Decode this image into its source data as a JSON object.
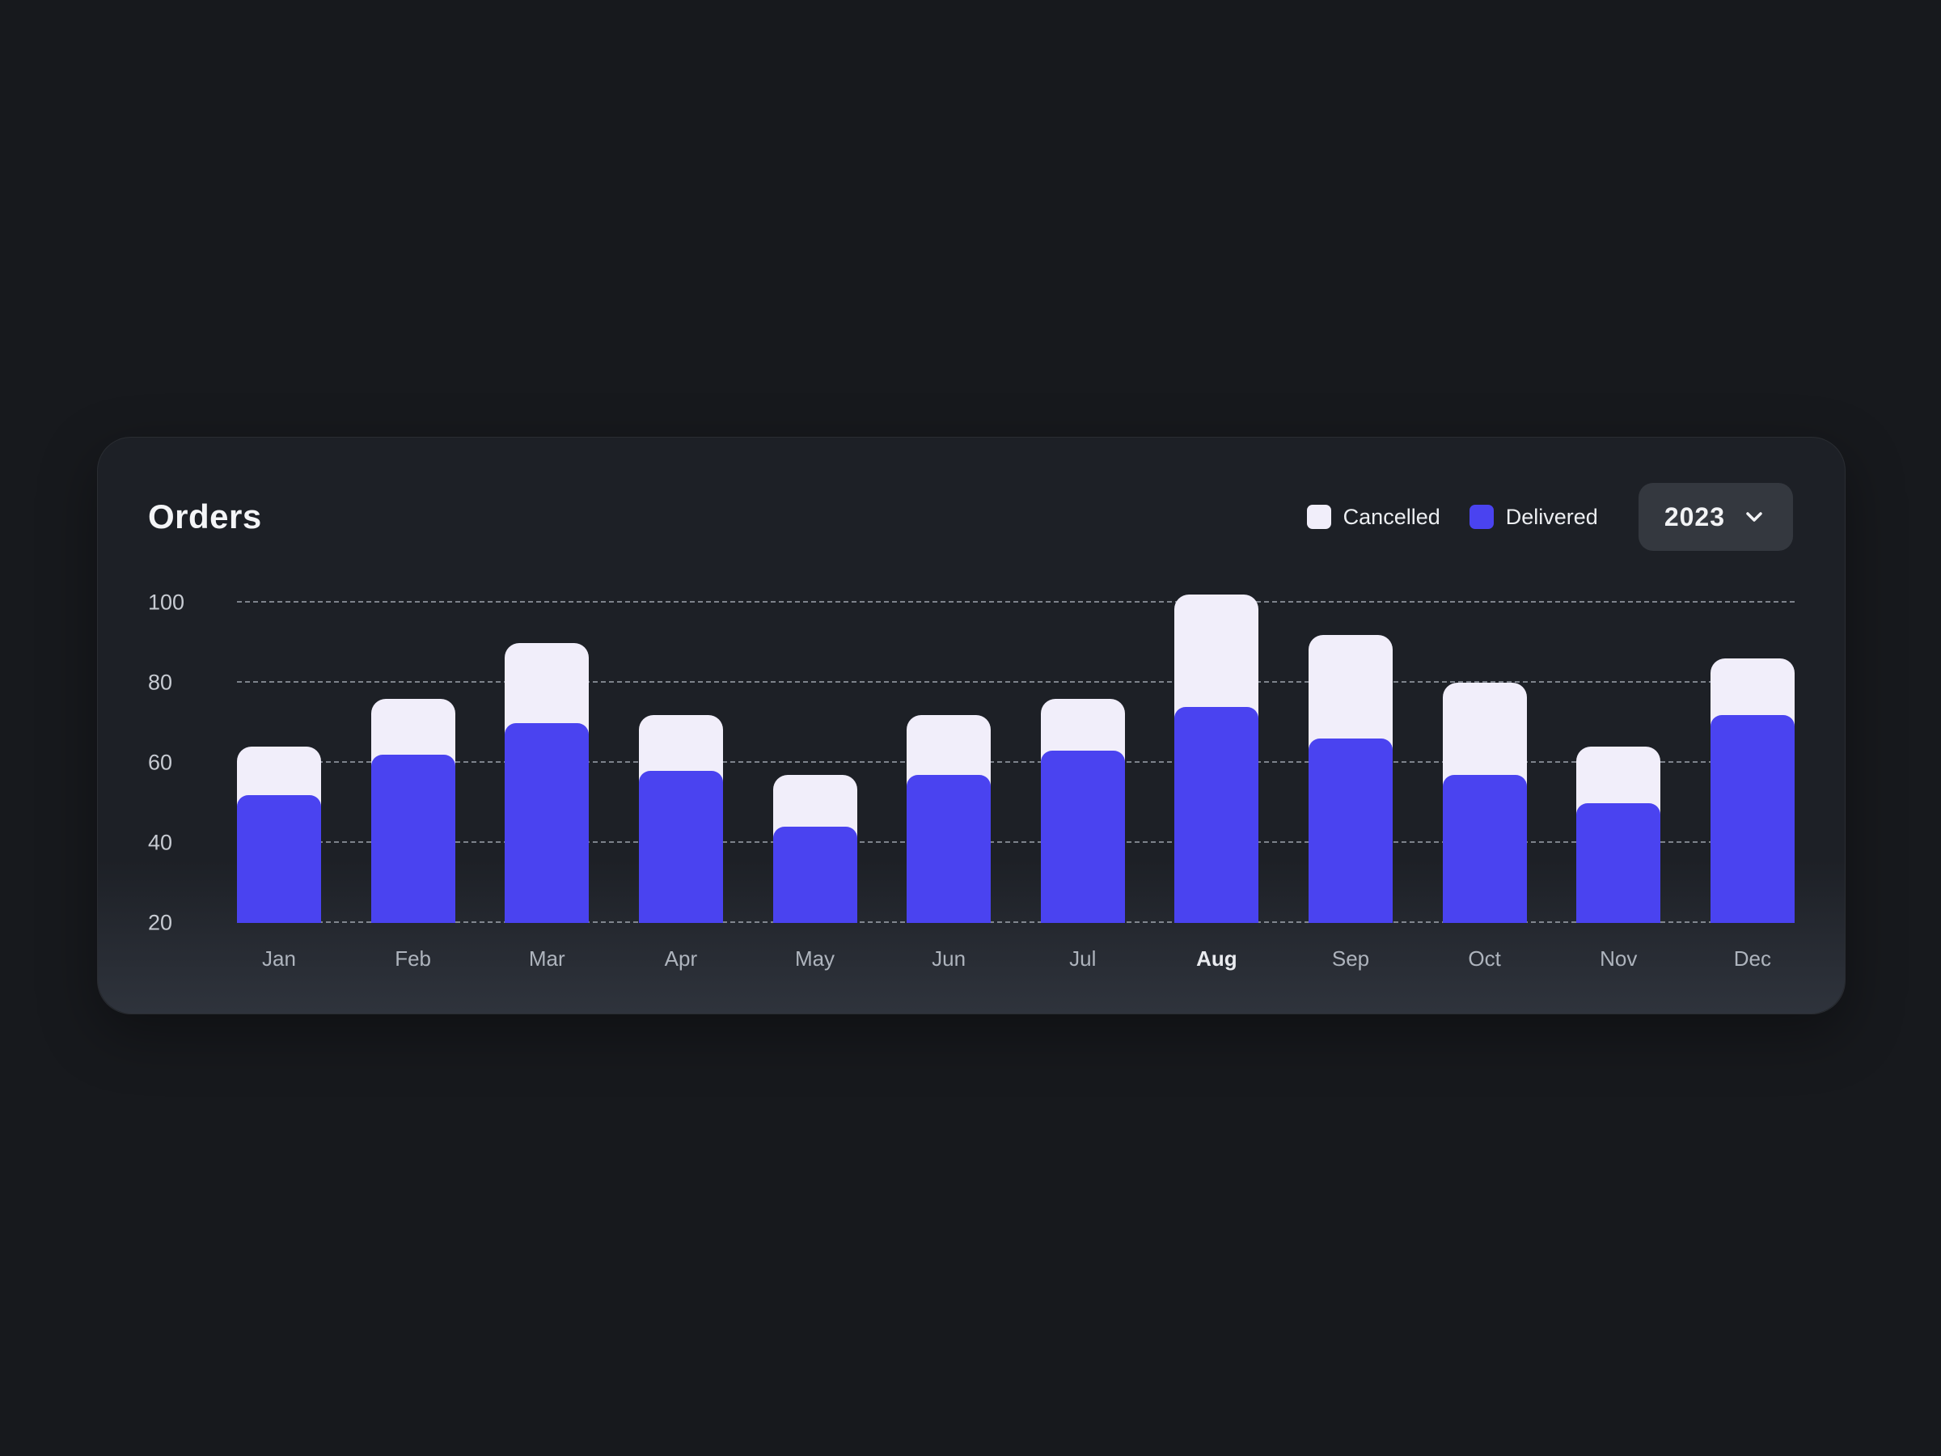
{
  "card": {
    "title": "Orders",
    "legend": [
      {
        "label": "Cancelled",
        "color": "#F1EEFA"
      },
      {
        "label": "Delivered",
        "color": "#4A43F0"
      }
    ],
    "year_selector": {
      "value": "2023",
      "icon": "chevron-down-icon"
    }
  },
  "colors": {
    "background": "#17191D",
    "card": "#1D2026",
    "delivered": "#4A43F0",
    "cancelled": "#F1EEFA"
  },
  "chart_data": {
    "type": "bar",
    "stacked": true,
    "title": "Orders",
    "categories": [
      "Jan",
      "Feb",
      "Mar",
      "Apr",
      "May",
      "Jun",
      "Jul",
      "Aug",
      "Sep",
      "Oct",
      "Nov",
      "Dec"
    ],
    "series": [
      {
        "name": "Delivered",
        "color": "#4A43F0",
        "values": [
          52,
          62,
          70,
          58,
          44,
          57,
          63,
          74,
          66,
          57,
          50,
          72
        ]
      },
      {
        "name": "Cancelled",
        "color": "#F1EEFA",
        "values": [
          12,
          14,
          20,
          14,
          13,
          15,
          13,
          28,
          26,
          23,
          14,
          14
        ]
      }
    ],
    "totals": [
      64,
      76,
      90,
      72,
      57,
      72,
      76,
      102,
      92,
      80,
      64,
      86
    ],
    "baseline": 20,
    "y_ticks": [
      20,
      40,
      60,
      80,
      100
    ],
    "ylim": [
      20,
      105
    ],
    "grid": "horizontal-dashed",
    "legend_position": "top-right",
    "highlight_category": "Aug"
  }
}
